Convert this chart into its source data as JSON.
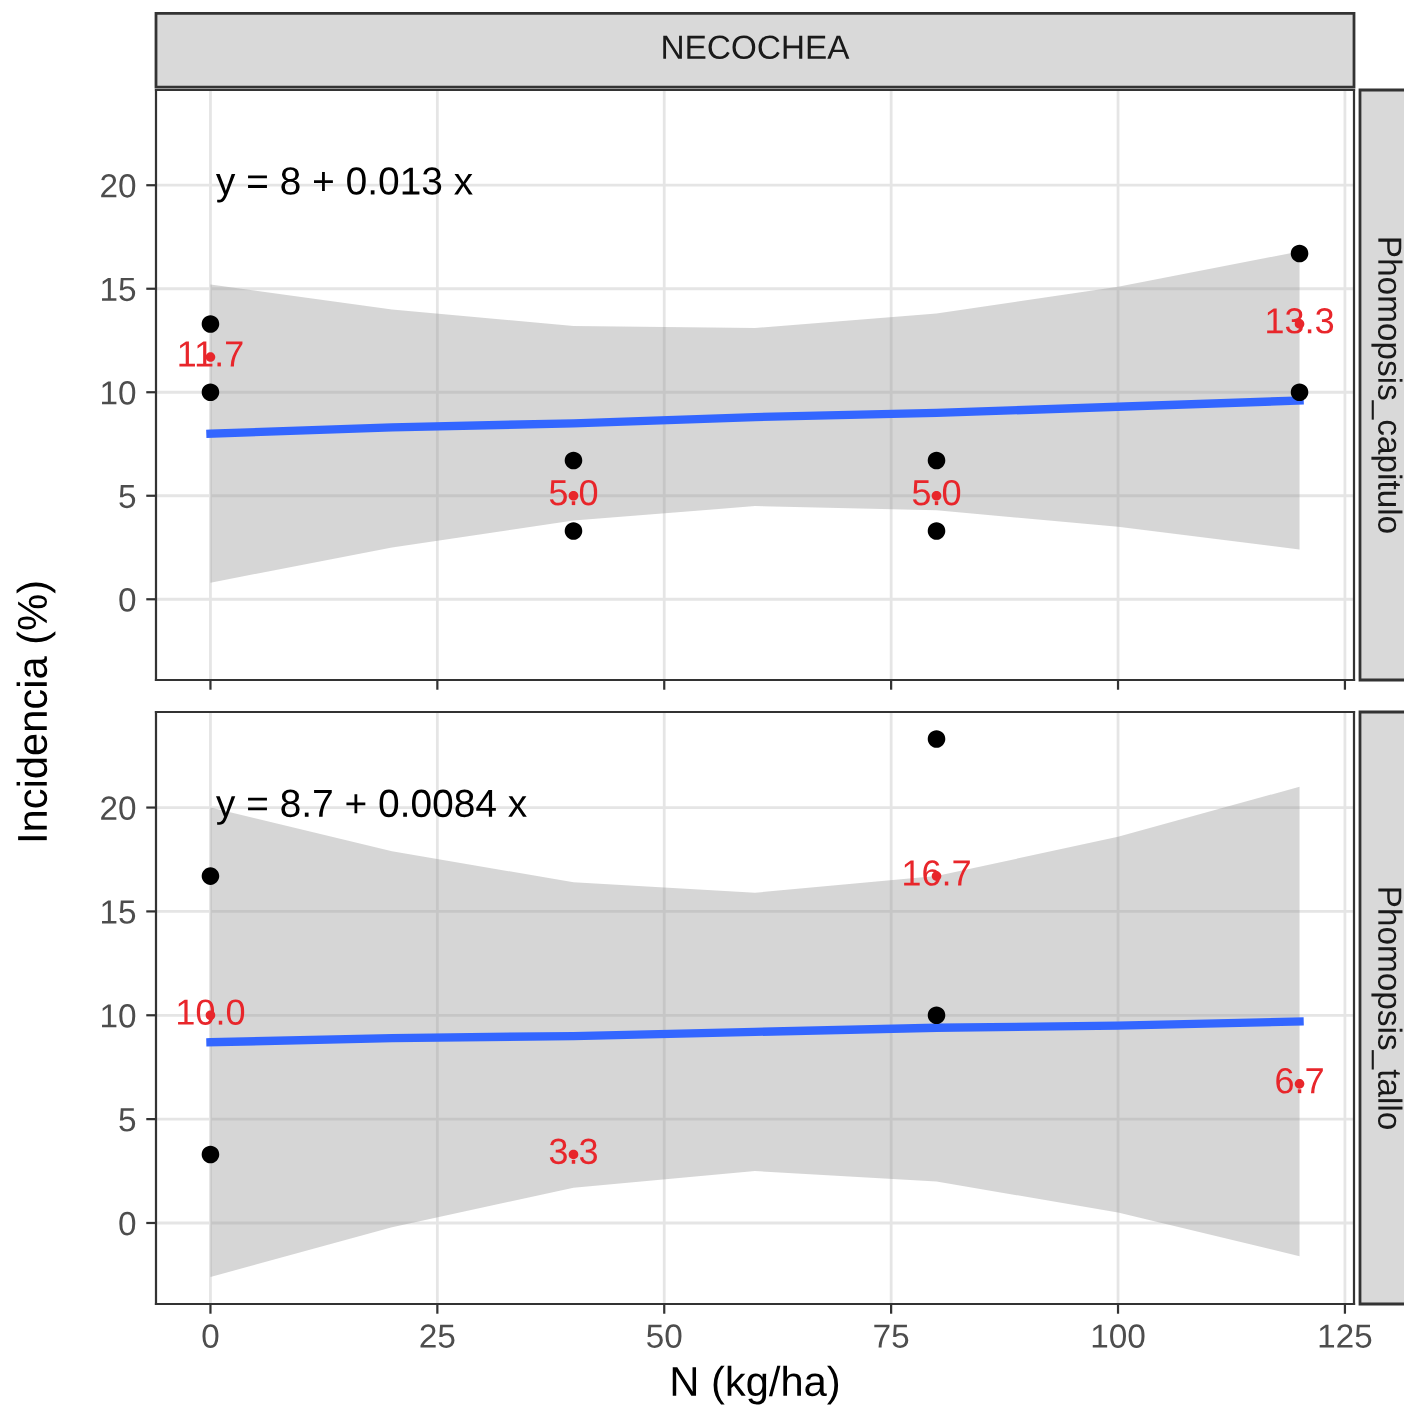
{
  "chart_data": [
    {
      "type": "scatter",
      "title": "NECOCHEA",
      "ylabel": "Incidencia (%)",
      "y2label": "Phomopsis_capitulo",
      "annotations": [
        "y = 8 + 0.013 x"
      ],
      "xlim": [
        -6,
        126
      ],
      "ylim": [
        -3.9,
        24.6
      ],
      "xticks": [
        0,
        25,
        50,
        75,
        100,
        125
      ],
      "yticks": [
        0,
        5,
        10,
        15,
        20
      ],
      "tick_labels": "y",
      "grid": true,
      "legend": false,
      "series": [
        {
          "type": "line",
          "color": "#3366ff",
          "x": [
            0,
            20,
            40,
            60,
            80,
            100,
            120
          ],
          "values": [
            8,
            8.3,
            8.5,
            8.8,
            9.0,
            9.3,
            9.6
          ],
          "lower": [
            0.8,
            2.5,
            3.8,
            4.5,
            4.3,
            3.5,
            2.4
          ],
          "upper": [
            15.2,
            14.0,
            13.2,
            13.1,
            13.8,
            15.1,
            16.8
          ]
        },
        {
          "color": "#000000",
          "x": [
            0,
            0,
            40,
            40,
            80,
            80,
            120,
            120
          ],
          "values": [
            13.3,
            10,
            6.7,
            3.3,
            6.7,
            3.3,
            16.7,
            10
          ]
        },
        {
          "color": "#e8262b",
          "x": [
            0,
            40,
            80,
            120
          ],
          "values": [
            11.7,
            5.0,
            5.0,
            13.3
          ],
          "value_labels": [
            "11.7",
            "5.0",
            "5.0",
            "13.3"
          ]
        }
      ]
    },
    {
      "type": "scatter",
      "xlabel": "N (kg/ha)",
      "y2label": "Phomopsis_tallo",
      "annotations": [
        "y = 8.7 + 0.0084 x"
      ],
      "xlim": [
        -6,
        126
      ],
      "ylim": [
        -3.9,
        24.6
      ],
      "xticks": [
        0,
        25,
        50,
        75,
        100,
        125
      ],
      "yticks": [
        0,
        5,
        10,
        15,
        20
      ],
      "grid": true,
      "legend": false,
      "series": [
        {
          "type": "line",
          "color": "#3366ff",
          "x": [
            0,
            20,
            40,
            60,
            80,
            100,
            120
          ],
          "values": [
            8.7,
            8.9,
            9.0,
            9.2,
            9.4,
            9.5,
            9.7
          ],
          "lower": [
            -2.6,
            -0.2,
            1.7,
            2.5,
            2.0,
            0.5,
            -1.6
          ],
          "upper": [
            20.0,
            17.9,
            16.4,
            15.9,
            16.7,
            18.6,
            21.0
          ]
        },
        {
          "color": "#000000",
          "x": [
            0,
            0,
            80,
            80
          ],
          "values": [
            16.7,
            3.3,
            23.3,
            10.0
          ]
        },
        {
          "color": "#e8262b",
          "x": [
            0,
            40,
            80,
            120
          ],
          "values": [
            10.0,
            3.3,
            16.7,
            6.7
          ],
          "value_labels": [
            "10.0",
            "3.3",
            "16.7",
            "6.7"
          ]
        }
      ]
    }
  ]
}
